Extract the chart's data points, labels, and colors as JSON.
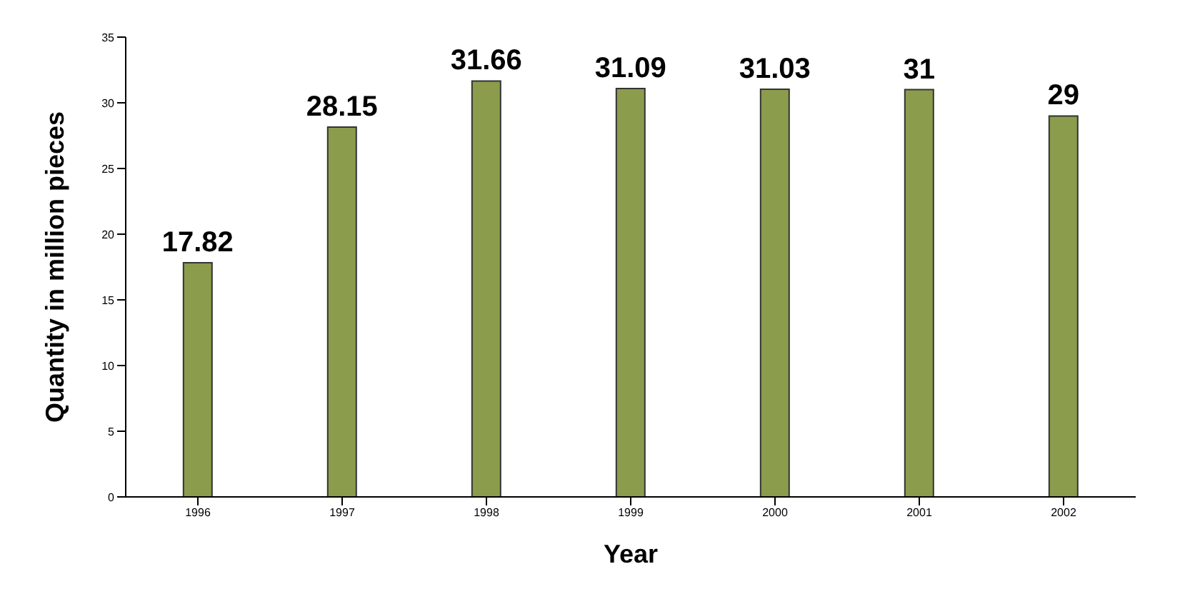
{
  "chart_data": {
    "type": "bar",
    "xlabel": "Year",
    "ylabel": "Quantity in million pieces",
    "categories": [
      "1996",
      "1997",
      "1998",
      "1999",
      "2000",
      "2001",
      "2002"
    ],
    "values": [
      17.82,
      28.15,
      31.66,
      31.09,
      31.03,
      31,
      29
    ],
    "color": "#8b9c4c",
    "ylim": [
      0,
      35
    ],
    "yticks": [
      0,
      5,
      10,
      15,
      20,
      25,
      30,
      35
    ],
    "grid": false,
    "data_labels": true
  }
}
